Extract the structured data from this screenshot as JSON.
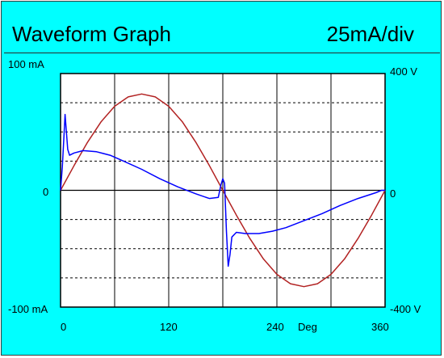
{
  "header": {
    "title": "Waveform Graph",
    "scale": "25mA/div"
  },
  "colors": {
    "background": "#00ffff",
    "plot_area": "#ffffff",
    "current": "#0000ff",
    "voltage": "#b22222"
  },
  "chart_data": {
    "type": "line",
    "x_unit": "Deg",
    "xlim": [
      0,
      360
    ],
    "x_ticks": [
      "0",
      "120",
      "240",
      "360"
    ],
    "y_left": {
      "lim": [
        -100,
        100
      ],
      "ticks": [
        "100 mA",
        "0",
        "-100 mA"
      ]
    },
    "y_right": {
      "lim": [
        -400,
        400
      ],
      "ticks": [
        "400 V",
        "0",
        "-400 V"
      ]
    },
    "series": [
      {
        "axis": "right",
        "color": "#b22222",
        "x": [
          0,
          15,
          30,
          45,
          60,
          75,
          90,
          105,
          120,
          135,
          150,
          165,
          180,
          195,
          210,
          225,
          240,
          255,
          270,
          285,
          300,
          315,
          330,
          345,
          360
        ],
        "y": [
          0,
          85,
          165,
          235,
          288,
          320,
          330,
          320,
          288,
          235,
          165,
          85,
          0,
          -85,
          -165,
          -235,
          -288,
          -320,
          -330,
          -320,
          -288,
          -235,
          -165,
          -85,
          0
        ]
      },
      {
        "axis": "left",
        "color": "#0000ff",
        "x": [
          0,
          2,
          4,
          5,
          6,
          8,
          10,
          15,
          25,
          40,
          55,
          70,
          90,
          110,
          130,
          150,
          165,
          175,
          178,
          180,
          182,
          184,
          186,
          188,
          190,
          195,
          205,
          220,
          235,
          250,
          270,
          290,
          310,
          330,
          350,
          356,
          360
        ],
        "y": [
          0,
          20,
          50,
          65,
          55,
          35,
          30,
          32,
          34,
          33,
          30,
          25,
          18,
          10,
          3,
          -3,
          -7,
          -6,
          5,
          10,
          6,
          -35,
          -65,
          -55,
          -40,
          -36,
          -37,
          -37,
          -35,
          -32,
          -26,
          -20,
          -13,
          -7,
          -2,
          0,
          0
        ]
      }
    ]
  }
}
